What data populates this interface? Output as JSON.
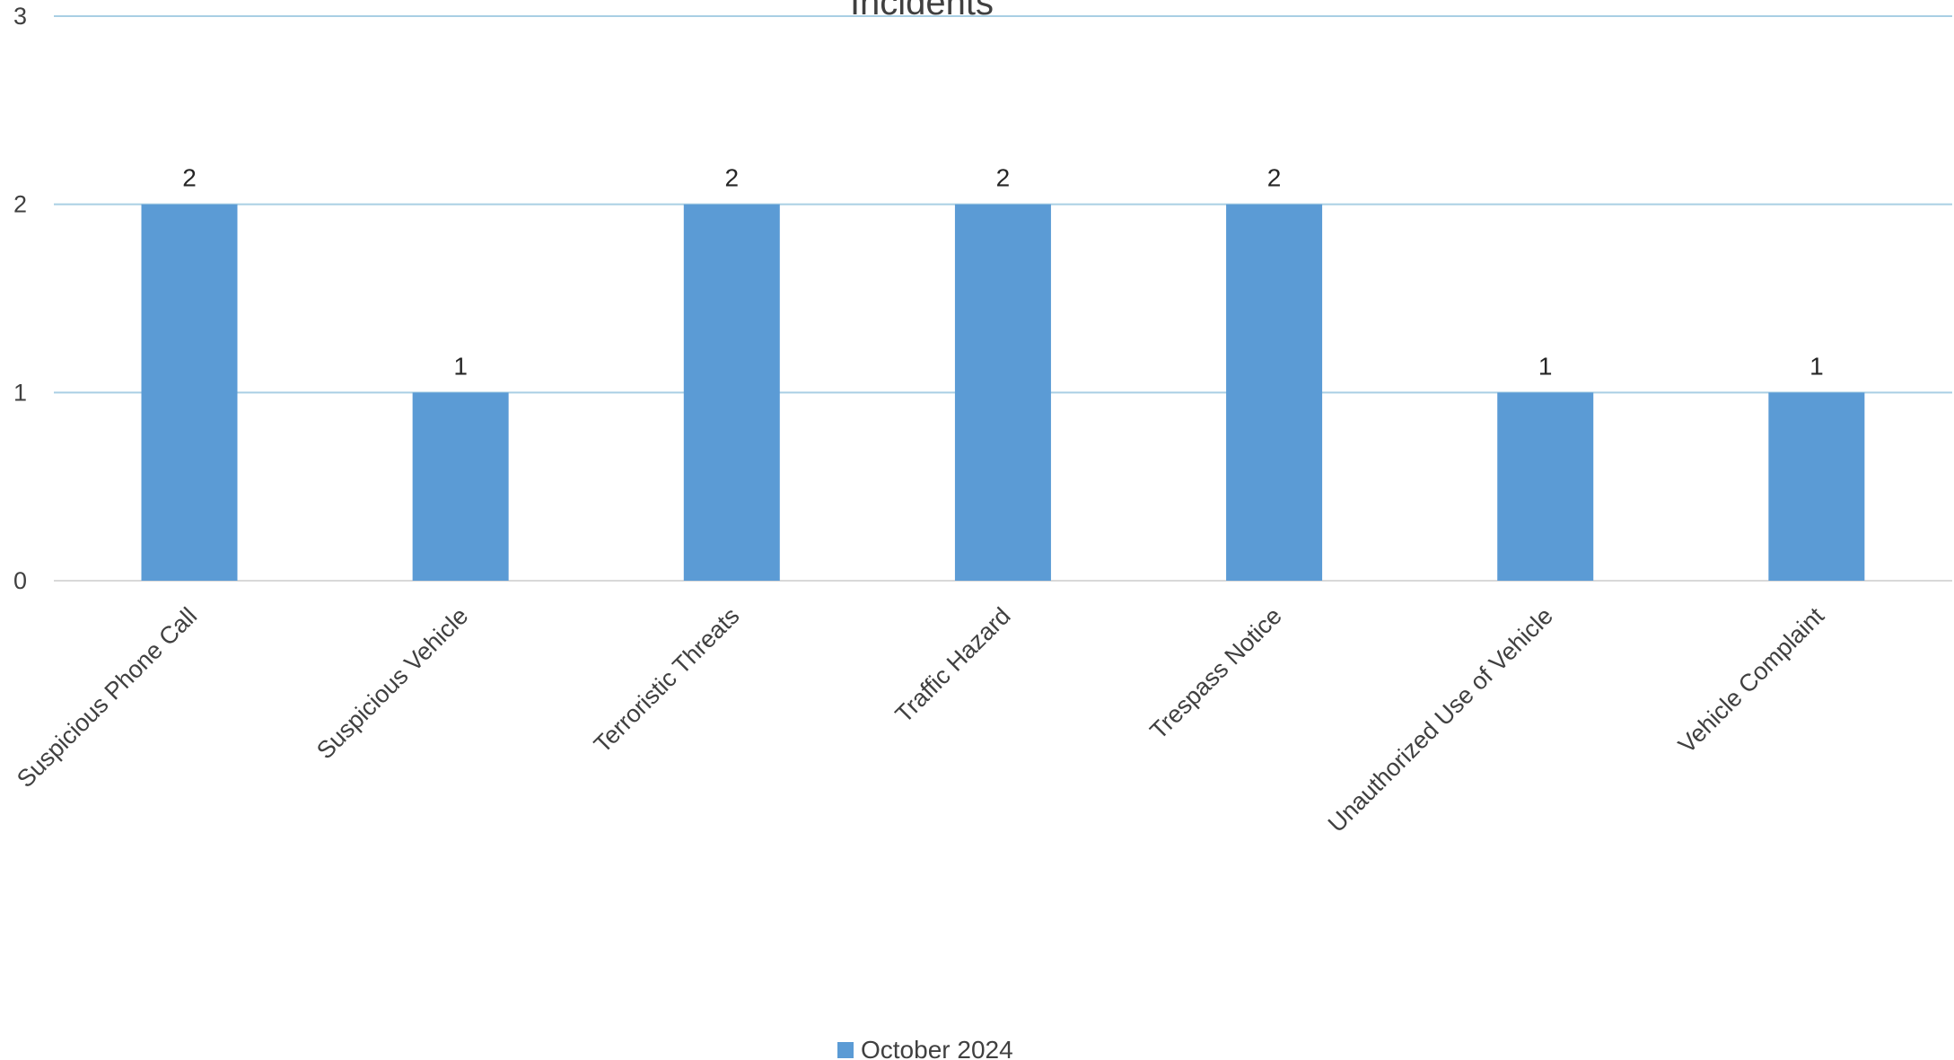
{
  "chart_data": {
    "type": "bar",
    "title": "Incidents",
    "categories": [
      "Suspicious Phone Call",
      "Suspicious Vehicle",
      "Terroristic Threats",
      "Traffic Hazard",
      "Trespass Notice",
      "Unauthorized Use of Vehicle",
      "Vehicle Complaint"
    ],
    "series": [
      {
        "name": "October 2024",
        "values": [
          2,
          1,
          2,
          2,
          2,
          1,
          1
        ]
      }
    ],
    "y_ticks": [
      "0",
      "1",
      "2",
      "3"
    ],
    "ylim": [
      0,
      3
    ],
    "xlabel": "",
    "ylabel": "",
    "grid": true,
    "legend_position": "bottom",
    "data_labels": true,
    "colors": {
      "bar": "#5b9bd5",
      "grid": "#a9cfe4",
      "axis": "#d9d9d9"
    }
  }
}
